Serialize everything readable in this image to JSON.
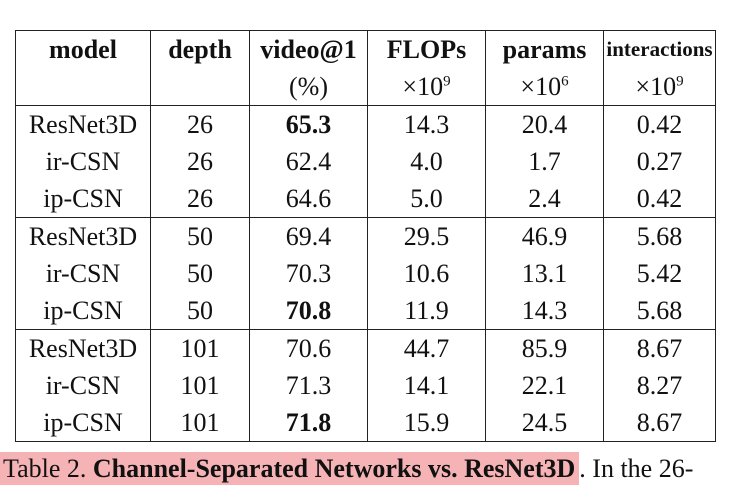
{
  "table": {
    "headers": [
      {
        "label": "model",
        "unit": ""
      },
      {
        "label": "depth",
        "unit": ""
      },
      {
        "label": "video@1",
        "unit": "(%)"
      },
      {
        "label": "FLOPs",
        "unit_base": "×10",
        "unit_exp": "9"
      },
      {
        "label": "params",
        "unit_base": "×10",
        "unit_exp": "6"
      },
      {
        "label": "interactions",
        "unit_base": "×10",
        "unit_exp": "9"
      }
    ],
    "groups": [
      {
        "rows": [
          {
            "model": "ResNet3D",
            "depth": "26",
            "video1": "65.3",
            "video1_bold": true,
            "flops": "14.3",
            "params": "20.4",
            "interactions": "0.42"
          },
          {
            "model": "ir-CSN",
            "depth": "26",
            "video1": "62.4",
            "video1_bold": false,
            "flops": "4.0",
            "params": "1.7",
            "interactions": "0.27"
          },
          {
            "model": "ip-CSN",
            "depth": "26",
            "video1": "64.6",
            "video1_bold": false,
            "flops": "5.0",
            "params": "2.4",
            "interactions": "0.42"
          }
        ]
      },
      {
        "rows": [
          {
            "model": "ResNet3D",
            "depth": "50",
            "video1": "69.4",
            "video1_bold": false,
            "flops": "29.5",
            "params": "46.9",
            "interactions": "5.68"
          },
          {
            "model": "ir-CSN",
            "depth": "50",
            "video1": "70.3",
            "video1_bold": false,
            "flops": "10.6",
            "params": "13.1",
            "interactions": "5.42"
          },
          {
            "model": "ip-CSN",
            "depth": "50",
            "video1": "70.8",
            "video1_bold": true,
            "flops": "11.9",
            "params": "14.3",
            "interactions": "5.68"
          }
        ]
      },
      {
        "rows": [
          {
            "model": "ResNet3D",
            "depth": "101",
            "video1": "70.6",
            "video1_bold": false,
            "flops": "44.7",
            "params": "85.9",
            "interactions": "8.67"
          },
          {
            "model": "ir-CSN",
            "depth": "101",
            "video1": "71.3",
            "video1_bold": false,
            "flops": "14.1",
            "params": "22.1",
            "interactions": "8.27"
          },
          {
            "model": "ip-CSN",
            "depth": "101",
            "video1": "71.8",
            "video1_bold": true,
            "flops": "15.9",
            "params": "24.5",
            "interactions": "8.67"
          }
        ]
      }
    ]
  },
  "caption": {
    "label": "Table 2.",
    "title": "Channel-Separated Networks vs. ResNet3D",
    "title_end": ".",
    "continuation": " In the 26-"
  },
  "colors": {
    "caption_highlight": "#f6b3b6",
    "rules": "#222222"
  }
}
